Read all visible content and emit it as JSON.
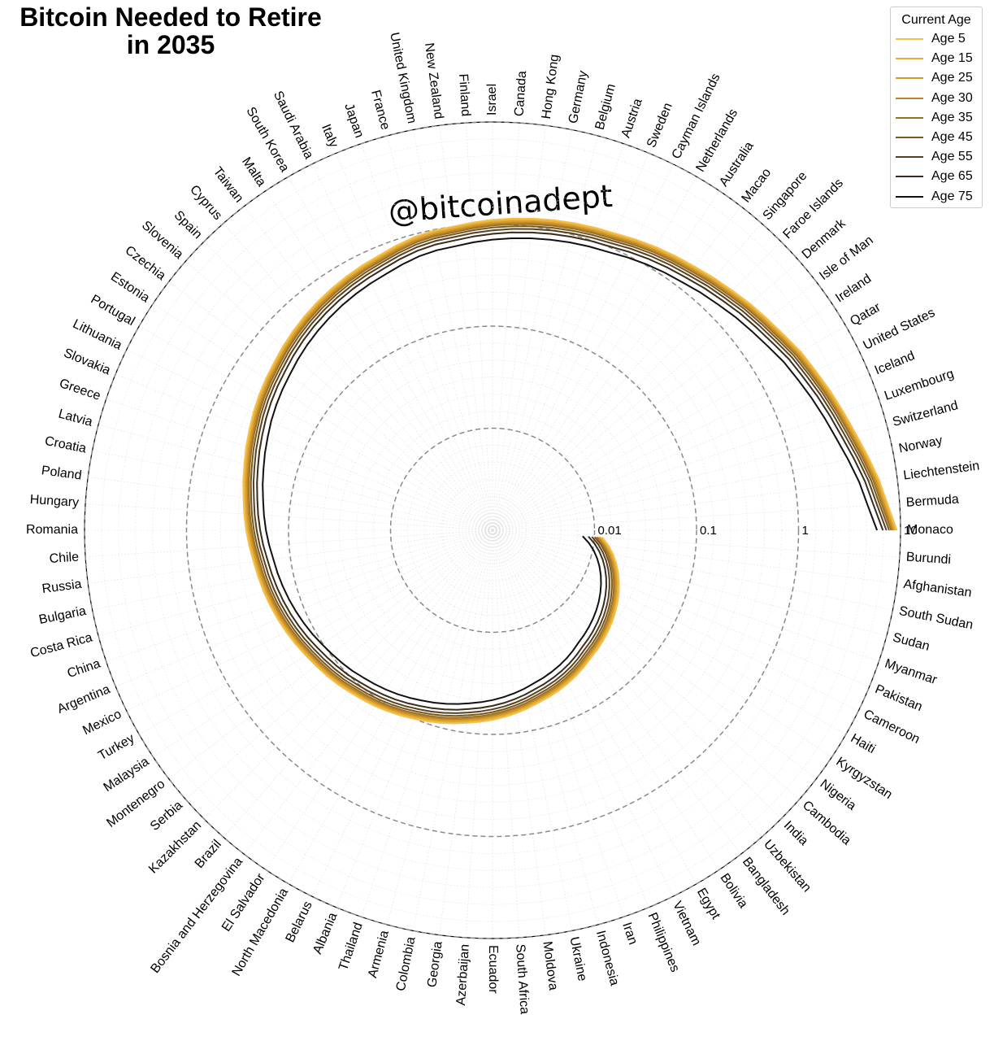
{
  "chart_data": {
    "type": "polar-line",
    "title": "Bitcoin Needed to Retire\nin 2035",
    "watermark": "@bitcoinadept",
    "scale": "log",
    "rlim": [
      0.001,
      10
    ],
    "ring_values": [
      0.01,
      0.1,
      1,
      10
    ],
    "ring_labels": [
      "0.01",
      "0.1",
      "1",
      "10"
    ],
    "grid": true,
    "legend": {
      "title": "Current Age",
      "placement": "top-right"
    },
    "categories": [
      "Monaco",
      "Bermuda",
      "Liechtenstein",
      "Norway",
      "Switzerland",
      "Luxembourg",
      "Iceland",
      "United States",
      "Qatar",
      "Ireland",
      "Isle of Man",
      "Denmark",
      "Faroe Islands",
      "Singapore",
      "Macao",
      "Australia",
      "Netherlands",
      "Cayman Islands",
      "Sweden",
      "Austria",
      "Belgium",
      "Germany",
      "Hong Kong",
      "Canada",
      "Israel",
      "Finland",
      "New Zealand",
      "United Kingdom",
      "France",
      "Japan",
      "Italy",
      "Saudi Arabia",
      "South Korea",
      "Malta",
      "Taiwan",
      "Cyprus",
      "Spain",
      "Slovenia",
      "Czechia",
      "Estonia",
      "Portugal",
      "Lithuania",
      "Slovakia",
      "Greece",
      "Latvia",
      "Croatia",
      "Poland",
      "Hungary",
      "Romania",
      "Chile",
      "Russia",
      "Bulgaria",
      "Costa Rica",
      "China",
      "Argentina",
      "Mexico",
      "Turkey",
      "Malaysia",
      "Montenegro",
      "Serbia",
      "Kazakhstan",
      "Brazil",
      "Bosnia and Herzegovina",
      "El Salvador",
      "North Macedonia",
      "Belarus",
      "Albania",
      "Thailand",
      "Armenia",
      "Colombia",
      "Georgia",
      "Azerbaijan",
      "Ecuador",
      "South Africa",
      "Moldova",
      "Ukraine",
      "Indonesia",
      "Iran",
      "Philippines",
      "Vietnam",
      "Egypt",
      "Bolivia",
      "Bangladesh",
      "Uzbekistan",
      "India",
      "Cambodia",
      "Nigeria",
      "Kyrgyzstan",
      "Haiti",
      "Cameroon",
      "Pakistan",
      "Myanmar",
      "Sudan",
      "South Sudan",
      "Afghanistan",
      "Burundi"
    ],
    "values_age5": [
      9.2,
      7.6,
      6.6,
      5.6,
      4.8,
      4.25,
      3.8,
      3.4,
      3.1,
      2.75,
      2.5,
      2.3,
      2.1,
      1.95,
      1.8,
      1.7,
      1.6,
      1.5,
      1.4,
      1.35,
      1.3,
      1.25,
      1.2,
      1.15,
      1.1,
      1.05,
      1.0,
      0.98,
      0.94,
      0.88,
      0.82,
      0.78,
      0.74,
      0.7,
      0.66,
      0.62,
      0.58,
      0.54,
      0.5,
      0.47,
      0.44,
      0.41,
      0.38,
      0.355,
      0.33,
      0.31,
      0.29,
      0.275,
      0.26,
      0.245,
      0.23,
      0.22,
      0.21,
      0.2,
      0.19,
      0.18,
      0.17,
      0.16,
      0.152,
      0.145,
      0.138,
      0.13,
      0.124,
      0.118,
      0.112,
      0.106,
      0.1,
      0.095,
      0.09,
      0.085,
      0.08,
      0.076,
      0.072,
      0.068,
      0.064,
      0.06,
      0.056,
      0.053,
      0.05,
      0.047,
      0.044,
      0.041,
      0.038,
      0.036,
      0.034,
      0.032,
      0.03,
      0.028,
      0.026,
      0.024,
      0.022,
      0.02,
      0.018,
      0.016,
      0.014,
      0.012
    ],
    "series": [
      {
        "name": "Age 5",
        "color": "#f5c04a",
        "factor": 1.0
      },
      {
        "name": "Age 15",
        "color": "#e8ad36",
        "factor": 0.97
      },
      {
        "name": "Age 25",
        "color": "#d49a2a",
        "factor": 0.94
      },
      {
        "name": "Age 30",
        "color": "#b98626",
        "factor": 0.91
      },
      {
        "name": "Age 35",
        "color": "#9a7024",
        "factor": 0.88
      },
      {
        "name": "Age 45",
        "color": "#7a5820",
        "factor": 0.84
      },
      {
        "name": "Age 55",
        "color": "#5a4220",
        "factor": 0.79
      },
      {
        "name": "Age 65",
        "color": "#3a2c1a",
        "factor": 0.73
      },
      {
        "name": "Age 75",
        "color": "#111111",
        "factor": 0.64
      }
    ]
  }
}
